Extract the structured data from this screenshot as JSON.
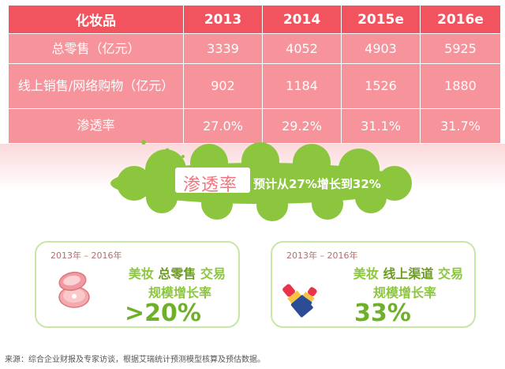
{
  "table": {
    "headers": [
      "化妆品",
      "2013",
      "2014",
      "2015e",
      "2016e"
    ],
    "rows": [
      {
        "label": "总零售（亿元）",
        "values": [
          "3339",
          "4052",
          "4903",
          "5925"
        ]
      },
      {
        "label": "线上销售/网络购物（亿元）",
        "values": [
          "902",
          "1184",
          "1526",
          "1880"
        ]
      },
      {
        "label": "渗透率",
        "values": [
          "27.0%",
          "29.2%",
          "31.1%",
          "31.7%"
        ]
      }
    ]
  },
  "banner": {
    "title": "渗透率",
    "desc": "预计从27%增长到32%"
  },
  "cards": [
    {
      "years": "2013年 – 2016年",
      "prefix": "美妆",
      "highlight": "总零售",
      "suffix": "交易",
      "line2": "规模增长率",
      "value": ">20%",
      "icon": "compact-powder-icon"
    },
    {
      "years": "2013年 – 2016年",
      "prefix": "美妆",
      "highlight": "线上渠道",
      "suffix": "交易",
      "line2": "规模增长率",
      "value": "33%",
      "icon": "lipstick-icon"
    }
  ],
  "source": "来源：综合企业财报及专家访谈，根据艾瑞统计预测模型核算及预估数据。",
  "colors": {
    "header_bg": "#f2545f",
    "cell_bg": "#f6939b",
    "cloud": "#8cc63f",
    "accent_green": "#6eb02a"
  }
}
